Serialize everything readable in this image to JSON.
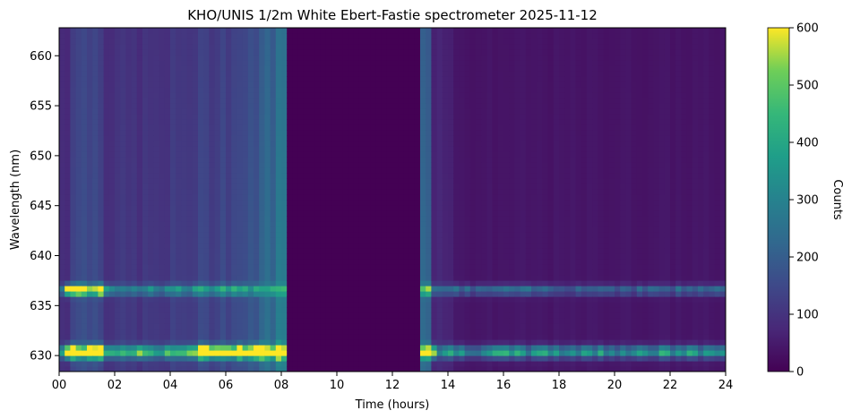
{
  "chart_data": {
    "type": "heatmap",
    "title": "KHO/UNIS 1/2m White Ebert-Fastie spectrometer 2025-11-12",
    "xlabel": "Time (hours)",
    "ylabel": "Wavelength (nm)",
    "xlim": [
      0,
      24
    ],
    "ylim": [
      628.4,
      662.8
    ],
    "x_ticks": [
      "00",
      "02",
      "04",
      "06",
      "08",
      "10",
      "12",
      "14",
      "16",
      "18",
      "20",
      "22",
      "24"
    ],
    "y_ticks": [
      630,
      635,
      640,
      645,
      650,
      655,
      660
    ],
    "colorbar": {
      "label": "Counts",
      "range": [
        0,
        600
      ],
      "ticks": [
        0,
        100,
        200,
        300,
        400,
        500,
        600
      ],
      "colormap": "viridis"
    },
    "data_gap_hours": [
      8.2,
      13.1
    ],
    "emission_lines_nm": [
      630.4,
      636.6
    ],
    "grid": false,
    "colors": {
      "background_min": "#440154",
      "mid": "#21918c",
      "max": "#fde725"
    }
  }
}
